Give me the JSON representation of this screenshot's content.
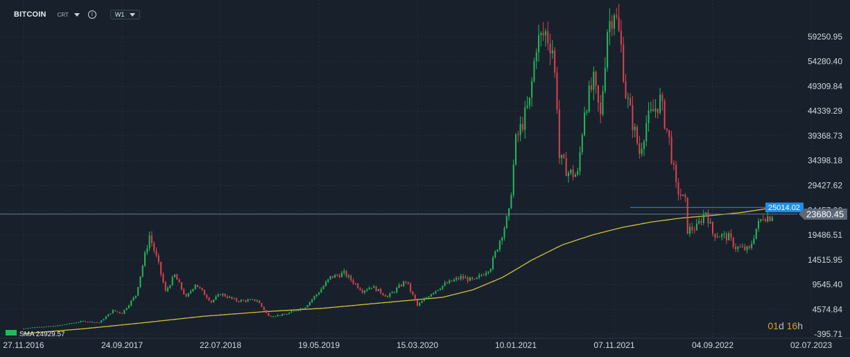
{
  "toolbar": {
    "symbol": "BITCOIN",
    "chart_type": "CRT",
    "timeframe": "W1"
  },
  "countdown": {
    "days": "01",
    "days_unit": "d",
    "hours": "16",
    "hours_unit": "h"
  },
  "chart_data": {
    "type": "candlestick",
    "title": "BITCOIN",
    "timeframe": "W1",
    "x_tick_labels": [
      "27.11.2016",
      "24.09.2017",
      "22.07.2018",
      "19.05.2019",
      "15.03.2020",
      "10.01.2021",
      "07.11.2021",
      "04.09.2022",
      "02.07.2023"
    ],
    "y_tick_labels": [
      "59250.95",
      "54280.40",
      "49309.84",
      "44339.29",
      "39368.73",
      "34398.18",
      "29427.62",
      "24457.06",
      "19486.51",
      "14515.95",
      "9545.40",
      "4574.84",
      "-395.71"
    ],
    "ylim": [
      -395.71,
      62000
    ],
    "price_line": {
      "label": "23680.45",
      "value": 23680.45
    },
    "level_line": {
      "label": "25014.02",
      "value": 25014.02
    },
    "sma": {
      "label": "SMA 24929.57",
      "value": 24929.57
    },
    "close_anchors": [
      [
        "2016-11-27",
        740
      ],
      [
        "2017-01-01",
        1000
      ],
      [
        "2017-03-05",
        1230
      ],
      [
        "2017-05-28",
        2200
      ],
      [
        "2017-07-16",
        1900
      ],
      [
        "2017-08-27",
        4300
      ],
      [
        "2017-09-24",
        3800
      ],
      [
        "2017-11-05",
        7400
      ],
      [
        "2017-12-17",
        19400
      ],
      [
        "2018-01-14",
        13500
      ],
      [
        "2018-02-04",
        8100
      ],
      [
        "2018-03-04",
        11400
      ],
      [
        "2018-04-08",
        6900
      ],
      [
        "2018-05-06",
        9700
      ],
      [
        "2018-06-24",
        6100
      ],
      [
        "2018-07-22",
        7700
      ],
      [
        "2018-09-09",
        6300
      ],
      [
        "2018-11-11",
        6400
      ],
      [
        "2018-12-16",
        3200
      ],
      [
        "2019-02-03",
        3500
      ],
      [
        "2019-04-07",
        5100
      ],
      [
        "2019-05-19",
        8100
      ],
      [
        "2019-06-23",
        11000
      ],
      [
        "2019-08-04",
        11800
      ],
      [
        "2019-09-29",
        8300
      ],
      [
        "2019-10-27",
        9200
      ],
      [
        "2019-12-15",
        7100
      ],
      [
        "2020-02-09",
        10300
      ],
      [
        "2020-03-15",
        5300
      ],
      [
        "2020-04-26",
        7800
      ],
      [
        "2020-06-07",
        9600
      ],
      [
        "2020-07-26",
        11000
      ],
      [
        "2020-09-06",
        10300
      ],
      [
        "2020-10-25",
        13100
      ],
      [
        "2020-11-22",
        18500
      ],
      [
        "2020-12-20",
        23800
      ],
      [
        "2021-01-10",
        38200
      ],
      [
        "2021-02-21",
        46000
      ],
      [
        "2021-03-14",
        58000
      ],
      [
        "2021-04-11",
        60000
      ],
      [
        "2021-05-02",
        57000
      ],
      [
        "2021-05-16",
        46000
      ],
      [
        "2021-05-23",
        35000
      ],
      [
        "2021-06-20",
        32000
      ],
      [
        "2021-07-18",
        31500
      ],
      [
        "2021-08-08",
        45000
      ],
      [
        "2021-09-05",
        50000
      ],
      [
        "2021-09-26",
        43000
      ],
      [
        "2021-10-17",
        61000
      ],
      [
        "2021-11-07",
        65000
      ],
      [
        "2021-11-28",
        57000
      ],
      [
        "2021-12-12",
        48000
      ],
      [
        "2022-01-23",
        36000
      ],
      [
        "2022-02-13",
        42000
      ],
      [
        "2022-03-27",
        46500
      ],
      [
        "2022-04-24",
        38500
      ],
      [
        "2022-05-15",
        29000
      ],
      [
        "2022-06-12",
        26000
      ],
      [
        "2022-06-19",
        20500
      ],
      [
        "2022-07-17",
        21000
      ],
      [
        "2022-08-14",
        24300
      ],
      [
        "2022-09-04",
        19800
      ],
      [
        "2022-10-23",
        19000
      ],
      [
        "2022-11-13",
        17000
      ],
      [
        "2022-12-25",
        16500
      ],
      [
        "2023-01-15",
        20800
      ],
      [
        "2023-02-05",
        23300
      ],
      [
        "2023-02-26",
        23100
      ],
      [
        "2023-03-05",
        23680
      ]
    ],
    "sma_anchors": [
      [
        "2016-11-27",
        -300
      ],
      [
        "2017-06-01",
        700
      ],
      [
        "2017-12-01",
        1900
      ],
      [
        "2018-06-01",
        3200
      ],
      [
        "2018-12-01",
        4100
      ],
      [
        "2019-06-01",
        4800
      ],
      [
        "2019-12-01",
        5900
      ],
      [
        "2020-06-01",
        7000
      ],
      [
        "2020-09-01",
        8500
      ],
      [
        "2020-12-01",
        11000
      ],
      [
        "2021-03-01",
        14500
      ],
      [
        "2021-06-01",
        17500
      ],
      [
        "2021-09-01",
        19500
      ],
      [
        "2021-12-01",
        21000
      ],
      [
        "2022-03-01",
        22100
      ],
      [
        "2022-06-01",
        22900
      ],
      [
        "2022-09-01",
        23400
      ],
      [
        "2022-12-01",
        24000
      ],
      [
        "2023-03-05",
        24929.57
      ]
    ]
  }
}
